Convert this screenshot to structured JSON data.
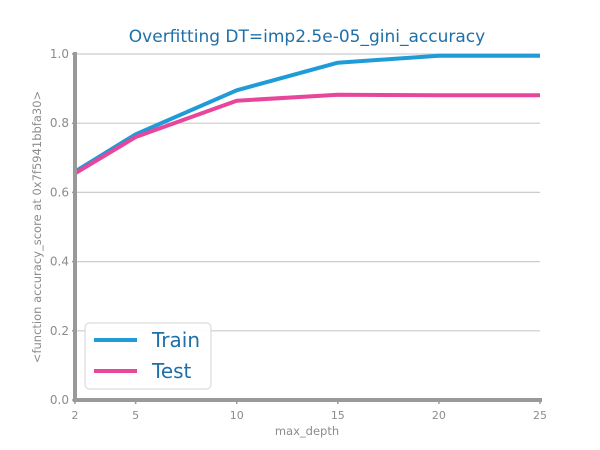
{
  "chart_data": {
    "type": "line",
    "title": "Overfitting DT=imp2.5e-05_gini_accuracy",
    "xlabel": "max_depth",
    "ylabel": "<function accuracy_score at 0x7f5941bbfa30>",
    "x": [
      2,
      5,
      10,
      15,
      20,
      25
    ],
    "xticks": [
      "2",
      "5",
      "10",
      "15",
      "20",
      "25"
    ],
    "yticks": [
      "0.0",
      "0.2",
      "0.4",
      "0.6",
      "0.8",
      "1.0"
    ],
    "xlim": [
      2,
      25
    ],
    "ylim": [
      0,
      1
    ],
    "grid": "horizontal",
    "legend_position": "lower-left",
    "series": [
      {
        "name": "Train",
        "color": "#1f9bd7",
        "values": [
          0.66,
          0.768,
          0.895,
          0.975,
          0.995,
          0.995
        ]
      },
      {
        "name": "Test",
        "color": "#e8469a",
        "values": [
          0.655,
          0.76,
          0.865,
          0.882,
          0.881,
          0.881
        ]
      }
    ],
    "colors": {
      "axis": "#999999",
      "grid": "#cccccc"
    }
  }
}
